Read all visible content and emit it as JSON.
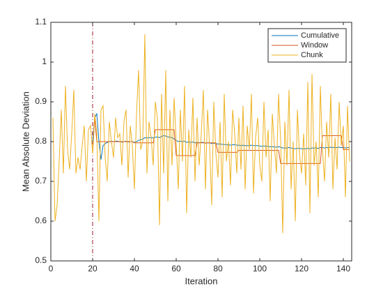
{
  "chart_data": {
    "type": "line",
    "x": [
      1,
      2,
      3,
      4,
      5,
      6,
      7,
      8,
      9,
      10,
      11,
      12,
      13,
      14,
      15,
      16,
      17,
      18,
      19,
      20,
      21,
      22,
      23,
      24,
      25,
      26,
      27,
      28,
      29,
      30,
      31,
      32,
      33,
      34,
      35,
      36,
      37,
      38,
      39,
      40,
      41,
      42,
      43,
      44,
      45,
      46,
      47,
      48,
      49,
      50,
      51,
      52,
      53,
      54,
      55,
      56,
      57,
      58,
      59,
      60,
      61,
      62,
      63,
      64,
      65,
      66,
      67,
      68,
      69,
      70,
      71,
      72,
      73,
      74,
      75,
      76,
      77,
      78,
      79,
      80,
      81,
      82,
      83,
      84,
      85,
      86,
      87,
      88,
      89,
      90,
      91,
      92,
      93,
      94,
      95,
      96,
      97,
      98,
      99,
      100,
      101,
      102,
      103,
      104,
      105,
      106,
      107,
      108,
      109,
      110,
      111,
      112,
      113,
      114,
      115,
      116,
      117,
      118,
      119,
      120,
      121,
      122,
      123,
      124,
      125,
      126,
      127,
      128,
      129,
      130,
      131,
      132,
      133,
      134,
      135,
      136,
      137,
      138,
      139,
      140,
      141,
      142,
      143
    ],
    "series": [
      {
        "name": "Cumulative",
        "color": "#0072BD",
        "values": [
          null,
          null,
          null,
          null,
          null,
          null,
          null,
          null,
          null,
          null,
          null,
          null,
          null,
          null,
          null,
          null,
          null,
          null,
          null,
          0.8,
          0.86,
          0.87,
          0.8,
          0.755,
          0.79,
          0.795,
          0.798,
          0.8,
          0.801,
          0.8,
          0.801,
          0.801,
          0.8,
          0.799,
          0.8,
          0.801,
          0.799,
          0.8,
          0.8,
          0.798,
          0.8,
          0.803,
          0.805,
          0.806,
          0.81,
          0.809,
          0.81,
          0.81,
          0.809,
          0.811,
          0.812,
          0.81,
          0.813,
          0.815,
          0.814,
          0.812,
          0.811,
          0.81,
          0.807,
          0.803,
          0.8,
          0.801,
          0.8,
          0.801,
          0.798,
          0.799,
          0.798,
          0.799,
          0.797,
          0.798,
          0.797,
          0.798,
          0.798,
          0.796,
          0.797,
          0.797,
          0.795,
          0.796,
          0.795,
          0.794,
          0.794,
          0.793,
          0.793,
          0.792,
          0.792,
          0.791,
          0.792,
          0.792,
          0.791,
          0.791,
          0.79,
          0.791,
          0.79,
          0.79,
          0.79,
          0.791,
          0.79,
          0.79,
          0.79,
          0.789,
          0.788,
          0.789,
          0.788,
          0.788,
          0.787,
          0.787,
          0.787,
          0.786,
          0.787,
          0.786,
          0.784,
          0.784,
          0.784,
          0.785,
          0.784,
          0.783,
          0.782,
          0.783,
          0.783,
          0.782,
          0.782,
          0.782,
          0.783,
          0.782,
          0.784,
          0.784,
          0.784,
          0.783,
          0.785,
          0.785,
          0.784,
          0.785,
          0.785,
          0.786,
          0.785,
          0.785,
          0.785,
          0.786,
          0.785,
          0.785,
          0.784,
          0.785,
          0.785
        ]
      },
      {
        "name": "Window",
        "color": "#D95319",
        "values": [
          null,
          null,
          null,
          null,
          null,
          null,
          null,
          null,
          null,
          null,
          null,
          null,
          null,
          null,
          null,
          null,
          null,
          null,
          null,
          0.77,
          0.86,
          0.8,
          0.8,
          0.8,
          0.8,
          0.8,
          0.8,
          0.8,
          0.8,
          0.8,
          0.8,
          0.8,
          0.8,
          0.8,
          0.8,
          0.8,
          0.8,
          0.8,
          0.8,
          0.797,
          0.797,
          0.797,
          0.797,
          0.797,
          0.797,
          0.797,
          0.797,
          0.797,
          0.797,
          0.83,
          0.83,
          0.83,
          0.83,
          0.83,
          0.83,
          0.83,
          0.83,
          0.83,
          0.83,
          0.765,
          0.765,
          0.765,
          0.765,
          0.765,
          0.765,
          0.765,
          0.765,
          0.765,
          0.765,
          0.797,
          0.797,
          0.797,
          0.797,
          0.797,
          0.797,
          0.797,
          0.797,
          0.797,
          0.797,
          0.773,
          0.773,
          0.773,
          0.773,
          0.773,
          0.773,
          0.773,
          0.773,
          0.773,
          0.773,
          0.778,
          0.778,
          0.778,
          0.778,
          0.778,
          0.778,
          0.778,
          0.778,
          0.778,
          0.778,
          0.778,
          0.778,
          0.778,
          0.778,
          0.778,
          0.778,
          0.778,
          0.778,
          0.778,
          0.778,
          0.745,
          0.745,
          0.745,
          0.745,
          0.745,
          0.745,
          0.745,
          0.745,
          0.745,
          0.745,
          0.745,
          0.745,
          0.745,
          0.745,
          0.745,
          0.745,
          0.745,
          0.745,
          0.745,
          0.745,
          0.815,
          0.815,
          0.815,
          0.815,
          0.815,
          0.815,
          0.815,
          0.815,
          0.815,
          0.815,
          0.78,
          0.78,
          0.78,
          0.78
        ]
      },
      {
        "name": "Chunk",
        "color": "#EDB120",
        "values": [
          0.86,
          0.6,
          0.64,
          0.75,
          0.88,
          0.72,
          0.94,
          0.78,
          0.73,
          0.82,
          0.93,
          0.72,
          0.76,
          0.73,
          0.79,
          0.84,
          0.7,
          0.83,
          0.84,
          0.77,
          0.87,
          0.82,
          0.6,
          0.88,
          0.89,
          0.76,
          0.7,
          0.85,
          0.8,
          0.76,
          0.86,
          0.81,
          0.82,
          0.74,
          0.85,
          0.88,
          0.71,
          0.84,
          0.79,
          0.68,
          0.87,
          0.98,
          0.78,
          0.8,
          1.07,
          0.72,
          0.85,
          0.81,
          0.74,
          0.9,
          0.86,
          0.59,
          0.92,
          0.72,
          0.98,
          0.65,
          0.88,
          0.74,
          0.91,
          0.8,
          0.68,
          0.88,
          0.75,
          0.94,
          0.62,
          0.83,
          0.76,
          0.91,
          0.7,
          0.86,
          0.74,
          0.82,
          0.93,
          0.68,
          0.88,
          0.79,
          0.64,
          0.9,
          0.77,
          0.71,
          0.85,
          0.66,
          0.92,
          0.75,
          0.8,
          0.69,
          0.88,
          0.82,
          0.72,
          0.86,
          0.73,
          0.89,
          0.68,
          0.84,
          0.78,
          0.92,
          0.67,
          0.81,
          0.86,
          0.74,
          0.7,
          0.9,
          0.76,
          0.83,
          0.65,
          0.87,
          0.79,
          0.72,
          0.92,
          0.8,
          0.57,
          0.85,
          0.74,
          0.93,
          0.68,
          0.8,
          0.6,
          0.88,
          0.77,
          0.72,
          0.82,
          0.69,
          0.95,
          0.62,
          0.97,
          0.74,
          0.8,
          0.66,
          0.94,
          0.78,
          0.7,
          0.85,
          0.76,
          0.92,
          0.68,
          0.81,
          0.73,
          0.9,
          0.79,
          0.84,
          0.66,
          0.89,
          0.75
        ]
      }
    ],
    "xline": {
      "value": 20,
      "color": "#A2142F"
    },
    "x_label": "Iteration",
    "y_label": "Mean Absolute Deviation",
    "xlim": [
      0,
      144
    ],
    "xticks": [
      0,
      20,
      40,
      60,
      80,
      100,
      120,
      140
    ],
    "ylim": [
      0.5,
      1.1
    ],
    "yticks": [
      0.5,
      0.6,
      0.7,
      0.8,
      0.9,
      1,
      1.1
    ],
    "legend": "top-right"
  }
}
